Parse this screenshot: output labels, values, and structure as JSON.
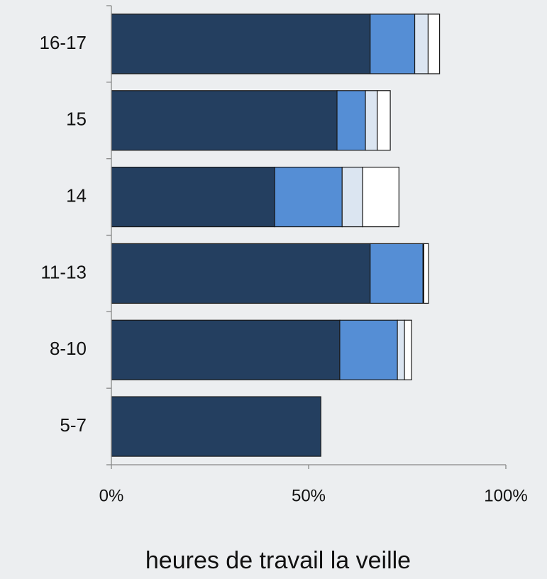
{
  "chart_data": {
    "type": "hbar-stacked",
    "categories": [
      "5-7",
      "8-10",
      "11-13",
      "14",
      "15",
      "16-17"
    ],
    "series": [
      {
        "color": "#243f60",
        "values": [
          53.1,
          57.9,
          65.6,
          41.4,
          57.2,
          65.6
        ]
      },
      {
        "color": "#558ed5",
        "values": [
          0,
          14.6,
          13.4,
          17.1,
          7.2,
          11.3
        ]
      },
      {
        "color": "#dbe5f1",
        "values": [
          0,
          1.8,
          0.2,
          5.2,
          3.0,
          3.4
        ]
      },
      {
        "color": "#ffffff",
        "values": [
          0,
          1.8,
          1.2,
          9.2,
          3.3,
          2.9
        ]
      }
    ],
    "xlim": [
      0,
      100
    ],
    "xticks": [
      {
        "value": 0,
        "label": "0%"
      },
      {
        "value": 50,
        "label": "50%"
      },
      {
        "value": 100,
        "label": "100%"
      }
    ],
    "xlabel": "heures de travail la veille"
  }
}
